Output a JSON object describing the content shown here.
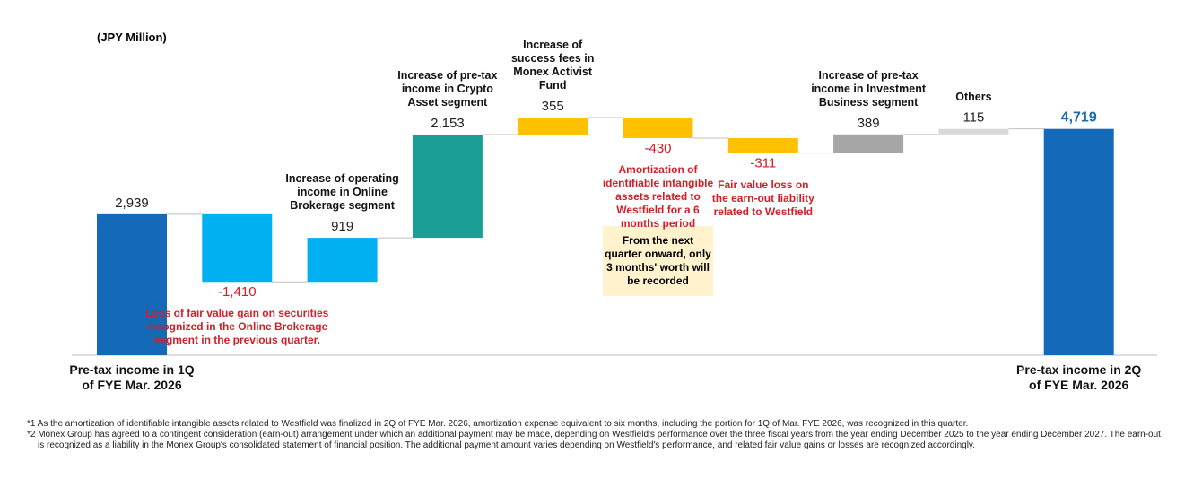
{
  "chart_data": {
    "type": "waterfall",
    "unit_label": "(JPY Million)",
    "categories": [
      "Pre-tax income in 1Q of FYE Mar. 2026",
      "Loss of fair value gain on securities recognized in the Online Brokerage segment in the previous quarter.",
      "Increase of operating income in Online Brokerage segment",
      "Increase of pre-tax income  in Crypto Asset segment",
      "Increase of success fees in Monex Activist Fund",
      "Amortization of identifiable intangible assets related to Westfield for a 6 months period",
      "Fair value loss on the earn-out liability related to Westfield",
      "Increase of pre-tax income in Investment Business segment",
      "Others",
      "Pre-tax income in 2Q of FYE Mar. 2026"
    ],
    "measure": [
      "absolute",
      "relative",
      "relative",
      "relative",
      "relative",
      "relative",
      "relative",
      "relative",
      "relative",
      "total"
    ],
    "values": [
      2939,
      -1410,
      919,
      2153,
      355,
      -430,
      -311,
      389,
      115,
      4719
    ],
    "value_labels": [
      "2,939",
      "-1,410",
      "919",
      "2,153",
      "355",
      "-430",
      "-311",
      "389",
      "115",
      "4,719"
    ],
    "colors": [
      "#1469b8",
      "#00b0f0",
      "#00b0f0",
      "#1b9e96",
      "#ffc000",
      "#ffc000",
      "#ffc000",
      "#a6a6a6",
      "#d9d9d9",
      "#1469b8"
    ],
    "value_label_colors": [
      "#222222",
      "#d0202a",
      "#222222",
      "#222222",
      "#222222",
      "#d0202a",
      "#d0202a",
      "#222222",
      "#222222",
      "#1a6bb0"
    ],
    "note": "From the next quarter onward, only 3 months' worth will be recorded",
    "footnotes": [
      "*1  As the amortization of identifiable intangible assets related to Westfield was finalized in 2Q of FYE Mar. 2026, amortization expense equivalent to six months, including the portion for 1Q of  Mar. FYE 2026, was recognized in this quarter.",
      "*2  Monex Group has agreed to a contingent consideration (earn-out) arrangement under which an additional payment may be made, depending on Westfield's performance over the three fiscal years from the year ending December 2025 to the year ending December 2027. The earn-out is recognized as a liability in the Monex Group's consolidated statement of financial position. The additional payment amount varies depending on Westfield's performance, and related fair value gains or losses are recognized accordingly."
    ]
  }
}
